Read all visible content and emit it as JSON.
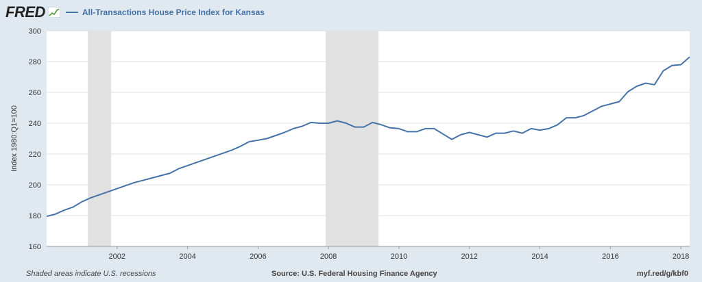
{
  "header": {
    "logo_text": "FRED",
    "series_title": "All-Transactions House Price Index for Kansas"
  },
  "footer": {
    "note": "Shaded areas indicate U.S. recessions",
    "source": "Source: U.S. Federal Housing Finance Agency",
    "shortlink": "myf.red/g/kbf0"
  },
  "colors": {
    "background": "#e1e9f0",
    "plot_background": "#ffffff",
    "series": "#4572a7",
    "recession": "#e1e1e1",
    "grid": "#e1e1e1"
  },
  "chart_data": {
    "type": "line",
    "title": "All-Transactions House Price Index for Kansas",
    "ylabel": "Index 1980:Q1=100",
    "xlabel": "",
    "xlim": [
      2000.0,
      2018.25
    ],
    "ylim": [
      160,
      300
    ],
    "x_ticks": [
      2002,
      2004,
      2006,
      2008,
      2010,
      2012,
      2014,
      2016,
      2018
    ],
    "y_ticks": [
      160,
      180,
      200,
      220,
      240,
      260,
      280,
      300
    ],
    "grid": true,
    "recessions": [
      [
        2001.17,
        2001.83
      ],
      [
        2007.92,
        2009.42
      ]
    ],
    "series": [
      {
        "name": "All-Transactions House Price Index for Kansas",
        "x": [
          2000.0,
          2000.25,
          2000.5,
          2000.75,
          2001.0,
          2001.25,
          2001.5,
          2001.75,
          2002.0,
          2002.25,
          2002.5,
          2002.75,
          2003.0,
          2003.25,
          2003.5,
          2003.75,
          2004.0,
          2004.25,
          2004.5,
          2004.75,
          2005.0,
          2005.25,
          2005.5,
          2005.75,
          2006.0,
          2006.25,
          2006.5,
          2006.75,
          2007.0,
          2007.25,
          2007.5,
          2007.75,
          2008.0,
          2008.25,
          2008.5,
          2008.75,
          2009.0,
          2009.25,
          2009.5,
          2009.75,
          2010.0,
          2010.25,
          2010.5,
          2010.75,
          2011.0,
          2011.25,
          2011.5,
          2011.75,
          2012.0,
          2012.25,
          2012.5,
          2012.75,
          2013.0,
          2013.25,
          2013.5,
          2013.75,
          2014.0,
          2014.25,
          2014.5,
          2014.75,
          2015.0,
          2015.25,
          2015.5,
          2015.75,
          2016.0,
          2016.25,
          2016.5,
          2016.75,
          2017.0,
          2017.25,
          2017.5,
          2017.75,
          2018.0,
          2018.25
        ],
        "values": [
          179.5,
          181.0,
          183.5,
          185.5,
          189.0,
          191.5,
          193.5,
          195.5,
          197.5,
          199.5,
          201.5,
          203.0,
          204.5,
          206.0,
          207.5,
          210.5,
          212.5,
          214.5,
          216.5,
          218.5,
          220.5,
          222.5,
          225.0,
          228.0,
          229.0,
          230.0,
          232.0,
          234.0,
          236.5,
          238.0,
          240.5,
          240.0,
          240.0,
          241.5,
          240.0,
          237.5,
          237.5,
          240.5,
          239.0,
          237.0,
          236.5,
          234.5,
          234.5,
          236.5,
          236.5,
          233.0,
          229.5,
          232.5,
          234.0,
          232.5,
          231.0,
          233.5,
          233.5,
          235.0,
          233.5,
          236.5,
          235.5,
          236.5,
          239.0,
          243.5,
          243.5,
          245.0,
          248.0,
          251.0,
          252.5,
          254.0,
          260.5,
          264.0,
          266.0,
          265.0,
          274.0,
          277.5,
          278.0,
          283.0
        ]
      }
    ]
  }
}
